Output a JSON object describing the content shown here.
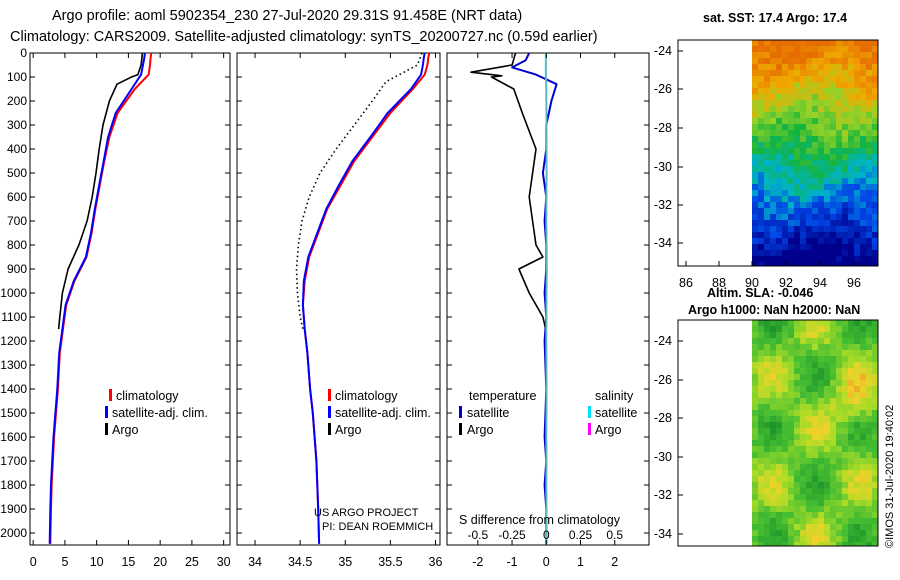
{
  "header": {
    "line1": "Argo profile: aoml 5902354_230 27-Jul-2020 29.31S 91.458E (NRT data)",
    "line2": "Climatology: CARS2009. Satellite-adjusted climatology: synTS_20200727.nc (0.59d earlier)"
  },
  "depth_ticks": [
    "0",
    "100",
    "200",
    "300",
    "400",
    "500",
    "600",
    "700",
    "800",
    "900",
    "1000",
    "1100",
    "1200",
    "1300",
    "1400",
    "1500",
    "1600",
    "1700",
    "1800",
    "1900",
    "2000"
  ],
  "chart_data": [
    {
      "type": "line",
      "id": "temperature",
      "x_ticks": [
        "0",
        "5",
        "10",
        "15",
        "20",
        "25",
        "30"
      ],
      "xlim": [
        -0.5,
        31
      ],
      "ylim": [
        2050,
        0
      ],
      "legend": [
        "climatology",
        "satellite-adj. clim.",
        "Argo"
      ],
      "series": [
        {
          "name": "climatology",
          "color": "#ff0000",
          "x": [
            18.6,
            18.5,
            18.4,
            18.2,
            16.0,
            13.3,
            12.0,
            11.2,
            10.5,
            9.8,
            9.2,
            8.4,
            6.5,
            5.2,
            4.7,
            4.2,
            3.9,
            3.6,
            3.3,
            3.1,
            2.9,
            2.8,
            2.7
          ],
          "y": [
            0,
            20,
            50,
            90,
            150,
            250,
            350,
            450,
            550,
            650,
            750,
            850,
            950,
            1050,
            1150,
            1250,
            1400,
            1500,
            1600,
            1700,
            1800,
            1900,
            2045
          ]
        },
        {
          "name": "satellite-adj. clim.",
          "color": "#0000ff",
          "x": [
            17.6,
            17.5,
            17.3,
            17.0,
            15.5,
            13.0,
            11.8,
            11.1,
            10.4,
            9.7,
            9.1,
            8.3,
            6.4,
            5.1,
            4.6,
            4.1,
            3.8,
            3.5,
            3.2,
            3.0,
            2.8,
            2.7,
            2.6
          ],
          "y": [
            0,
            20,
            50,
            90,
            150,
            250,
            350,
            450,
            550,
            650,
            750,
            850,
            950,
            1050,
            1150,
            1250,
            1400,
            1500,
            1600,
            1700,
            1800,
            1900,
            2045
          ]
        },
        {
          "name": "Argo",
          "color": "#000000",
          "x": [
            17.2,
            17.0,
            16.5,
            15.5,
            13.2,
            12.0,
            11.0,
            10.4,
            9.9,
            9.3,
            8.5,
            7.2,
            5.5,
            4.6,
            4.2,
            4.0
          ],
          "y": [
            0,
            50,
            90,
            100,
            130,
            200,
            300,
            400,
            500,
            600,
            700,
            800,
            900,
            1000,
            1100,
            1150
          ]
        }
      ]
    },
    {
      "type": "line",
      "id": "salinity",
      "x_ticks": [
        "34",
        "34.5",
        "35",
        "35.5",
        "36"
      ],
      "xlim": [
        33.8,
        36.05
      ],
      "ylim": [
        2050,
        0
      ],
      "legend": [
        "climatology",
        "satellite-adj. clim.",
        "Argo"
      ],
      "series": [
        {
          "name": "climatology",
          "color": "#ff0000",
          "x": [
            35.93,
            35.92,
            35.91,
            35.88,
            35.75,
            35.5,
            35.3,
            35.1,
            34.95,
            34.8,
            34.7,
            34.6,
            34.55,
            34.53,
            34.55,
            34.58,
            34.61,
            34.64,
            34.66,
            34.68,
            34.69,
            34.7,
            34.71
          ],
          "y": [
            0,
            20,
            50,
            90,
            150,
            250,
            350,
            450,
            550,
            650,
            750,
            850,
            950,
            1050,
            1150,
            1250,
            1400,
            1500,
            1600,
            1700,
            1800,
            1900,
            2045
          ]
        },
        {
          "name": "satellite-adj. clim.",
          "color": "#0000ff",
          "x": [
            35.88,
            35.87,
            35.86,
            35.84,
            35.73,
            35.47,
            35.28,
            35.08,
            34.93,
            34.79,
            34.69,
            34.59,
            34.54,
            34.53,
            34.55,
            34.58,
            34.61,
            34.64,
            34.66,
            34.68,
            34.69,
            34.7,
            34.71
          ],
          "y": [
            0,
            20,
            50,
            90,
            150,
            250,
            350,
            450,
            550,
            650,
            750,
            850,
            950,
            1050,
            1150,
            1250,
            1400,
            1500,
            1600,
            1700,
            1800,
            1900,
            2045
          ]
        },
        {
          "name": "Argo",
          "color": "#000000",
          "style": "dotted",
          "x": [
            35.85,
            35.8,
            35.6,
            35.45,
            35.3,
            35.1,
            34.9,
            34.72,
            34.6,
            34.52,
            34.48,
            34.46,
            34.47,
            34.5,
            34.53
          ],
          "y": [
            0,
            50,
            90,
            120,
            200,
            300,
            400,
            500,
            600,
            700,
            800,
            900,
            1000,
            1100,
            1150
          ]
        }
      ]
    },
    {
      "type": "line",
      "id": "difference",
      "title": "S difference from climatology",
      "x_ticks": [
        "-2",
        "-1",
        "0",
        "1",
        "2"
      ],
      "x_ticks_s": [
        "-0.5",
        "-0.25",
        "0",
        "0.25",
        "0.5"
      ],
      "xlim": [
        -2.9,
        3.0
      ],
      "ylim": [
        2050,
        0
      ],
      "legend_temperature": {
        "title": "temperature",
        "items": [
          "satellite",
          "Argo"
        ]
      },
      "legend_salinity": {
        "title": "salinity",
        "items": [
          "satellite",
          "Argo"
        ]
      },
      "series": [
        {
          "name": "temperature satellite",
          "color": "#0000cc",
          "x": [
            -0.5,
            -0.6,
            -1.0,
            -0.3,
            0.3,
            0.15,
            0.0,
            0.0,
            -0.1,
            0.0,
            -0.05,
            0.0,
            0.0,
            -0.05,
            0.0,
            -0.05,
            0.0,
            -0.05,
            0.0,
            -0.05,
            0.0,
            0.0
          ],
          "y": [
            0,
            30,
            60,
            90,
            130,
            200,
            300,
            400,
            500,
            600,
            700,
            800,
            900,
            1000,
            1100,
            1200,
            1400,
            1600,
            1700,
            1800,
            1900,
            2045
          ]
        },
        {
          "name": "temperature Argo",
          "color": "#000000",
          "x": [
            -0.9,
            -1.0,
            -2.2,
            -1.3,
            -1.6,
            -0.95,
            -0.7,
            -0.3,
            -0.5,
            -0.3,
            -0.1,
            -0.8,
            -0.5,
            -0.1,
            0.0
          ],
          "y": [
            0,
            50,
            80,
            95,
            100,
            150,
            250,
            400,
            600,
            800,
            850,
            900,
            1000,
            1100,
            1160
          ]
        },
        {
          "name": "salinity satellite",
          "color": "#00e0ff",
          "x": [
            -0.01,
            -0.015,
            0.0,
            0.005,
            0.008,
            0.0,
            0.01,
            0.015,
            0.005,
            0.0,
            0.01,
            0.0,
            0.005,
            0.0,
            0.005,
            0.0
          ],
          "y": [
            0,
            80,
            150,
            300,
            500,
            700,
            800,
            900,
            1000,
            1200,
            1400,
            1600,
            1700,
            1800,
            1900,
            2045
          ]
        },
        {
          "name": "salinity Argo",
          "color": "#ff00ff",
          "x": [],
          "y": []
        }
      ]
    }
  ],
  "maps": {
    "lon_ticks": [
      "86",
      "88",
      "90",
      "92",
      "94",
      "96"
    ],
    "lat_ticks": [
      "-24",
      "-26",
      "-28",
      "-30",
      "-32",
      "-34"
    ],
    "sst": {
      "title": "sat. SST: 17.4 Argo: 17.4"
    },
    "sla": {
      "title1": "Altim. SLA: -0.046",
      "title2": "Argo h1000: NaN h2000: NaN"
    }
  },
  "credits": {
    "project": "US ARGO PROJECT",
    "pi": "PI: DEAN ROEMMICH",
    "stamp": "©IMOS 31-Jul-2020 19:40:02"
  }
}
